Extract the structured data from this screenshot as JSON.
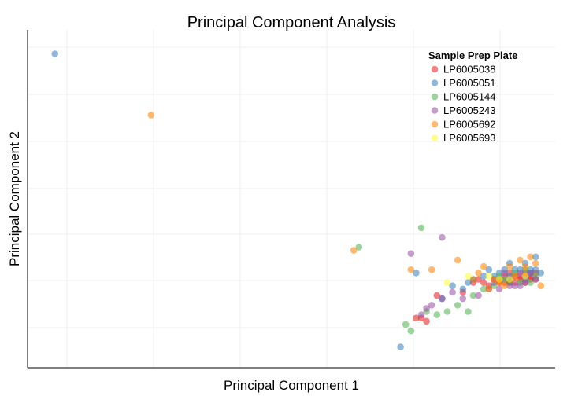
{
  "chart_data": {
    "type": "scatter",
    "title": "Principal Component Analysis",
    "xlabel": "Principal Component 1",
    "ylabel": "Principal Component 2",
    "xlim": [
      0,
      100
    ],
    "ylim": [
      0,
      100
    ],
    "grid": true,
    "legend": {
      "title": "Sample Prep Plate",
      "placement": "top-right"
    },
    "series": [
      {
        "name": "LP6005038",
        "color": "#e41a1c",
        "points": [
          [
            74,
            13
          ],
          [
            75,
            13
          ],
          [
            76,
            12
          ],
          [
            78,
            20
          ],
          [
            83,
            21
          ],
          [
            85,
            24
          ],
          [
            86,
            25
          ],
          [
            87,
            24
          ],
          [
            88,
            23
          ],
          [
            89,
            25
          ],
          [
            90,
            25
          ],
          [
            91,
            24
          ],
          [
            92,
            25
          ],
          [
            93,
            26
          ],
          [
            94,
            26
          ],
          [
            95,
            27
          ],
          [
            96,
            26
          ],
          [
            97,
            27
          ],
          [
            92,
            27
          ],
          [
            94,
            25
          ],
          [
            95,
            24
          ],
          [
            96,
            25
          ],
          [
            93,
            24
          ],
          [
            91,
            26
          ],
          [
            97,
            25
          ],
          [
            95,
            26
          ],
          [
            90,
            24
          ],
          [
            92,
            24
          ]
        ]
      },
      {
        "name": "LP6005051",
        "color": "#377eb8",
        "points": [
          [
            4.5,
            95
          ],
          [
            71,
            4
          ],
          [
            74,
            27
          ],
          [
            79,
            19
          ],
          [
            81,
            23
          ],
          [
            83,
            22
          ],
          [
            84,
            24
          ],
          [
            87,
            26
          ],
          [
            89,
            26
          ],
          [
            91,
            28
          ],
          [
            92,
            30
          ],
          [
            94,
            28
          ],
          [
            95,
            30
          ],
          [
            96,
            28
          ],
          [
            97,
            32
          ],
          [
            98,
            27
          ],
          [
            85,
            25
          ],
          [
            88,
            28
          ],
          [
            93,
            28
          ],
          [
            90,
            27
          ],
          [
            92,
            26
          ],
          [
            96,
            27
          ],
          [
            95,
            25
          ],
          [
            97,
            28
          ]
        ]
      },
      {
        "name": "LP6005144",
        "color": "#4daf4a",
        "points": [
          [
            63,
            35
          ],
          [
            75,
            41
          ],
          [
            72,
            11
          ],
          [
            73,
            9
          ],
          [
            76,
            15
          ],
          [
            78,
            14
          ],
          [
            80,
            15
          ],
          [
            82,
            17
          ],
          [
            84,
            15
          ],
          [
            85,
            20
          ],
          [
            87,
            22
          ],
          [
            89,
            23
          ],
          [
            92,
            24
          ],
          [
            94,
            24
          ],
          [
            96,
            24
          ],
          [
            93,
            27
          ],
          [
            95,
            28
          ],
          [
            91,
            25
          ],
          [
            97,
            26
          ],
          [
            90,
            26
          ]
        ]
      },
      {
        "name": "LP6005243",
        "color": "#984ea3",
        "points": [
          [
            73,
            33
          ],
          [
            79,
            38
          ],
          [
            76,
            16
          ],
          [
            77,
            17
          ],
          [
            75,
            14
          ],
          [
            79,
            19
          ],
          [
            81,
            21
          ],
          [
            83,
            19
          ],
          [
            86,
            20
          ],
          [
            88,
            22
          ],
          [
            90,
            22
          ],
          [
            92,
            23
          ],
          [
            94,
            23
          ],
          [
            95,
            24
          ],
          [
            93,
            23
          ],
          [
            96,
            27
          ],
          [
            91,
            27
          ],
          [
            94,
            27
          ],
          [
            89,
            24
          ],
          [
            97,
            25
          ]
        ]
      },
      {
        "name": "LP6005692",
        "color": "#ff7f00",
        "points": [
          [
            23,
            76
          ],
          [
            62,
            34
          ],
          [
            73,
            28
          ],
          [
            77,
            28
          ],
          [
            82,
            31
          ],
          [
            87,
            29
          ],
          [
            88,
            22
          ],
          [
            85,
            25
          ],
          [
            90,
            24
          ],
          [
            92,
            29
          ],
          [
            94,
            31
          ],
          [
            96,
            32
          ],
          [
            98,
            23
          ],
          [
            93,
            26
          ],
          [
            91,
            23
          ],
          [
            95,
            29
          ],
          [
            97,
            30
          ],
          [
            89,
            25
          ],
          [
            86,
            27
          ]
        ]
      },
      {
        "name": "LP6005693",
        "color": "#ffff33",
        "points": [
          [
            80,
            24
          ],
          [
            84,
            26
          ],
          [
            88,
            26
          ],
          [
            92,
            25
          ],
          [
            95,
            26
          ],
          [
            90,
            25
          ]
        ]
      }
    ]
  }
}
